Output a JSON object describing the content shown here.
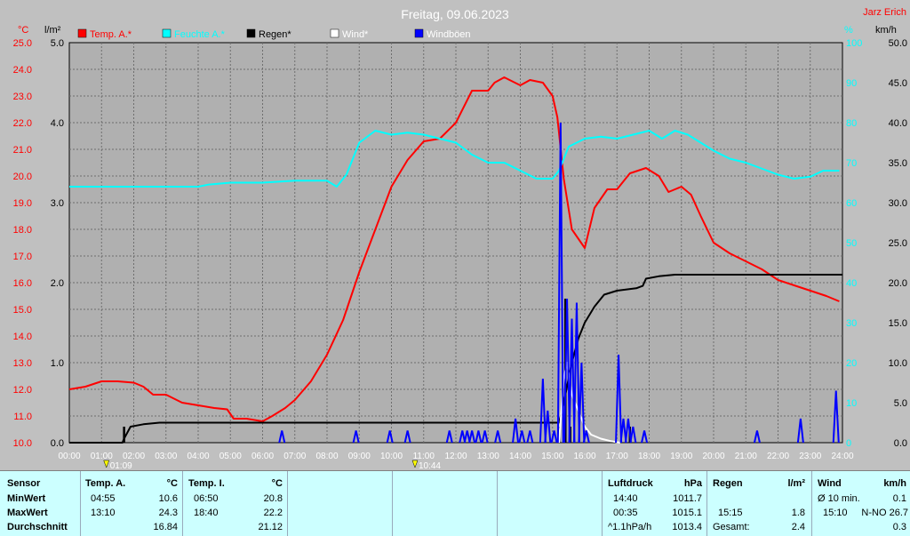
{
  "header": {
    "title": "Freitag, 09.06.2023",
    "author": "Jarz Erich"
  },
  "axis_units": {
    "temp": "°C",
    "rain": "l/m²",
    "humidity": "%",
    "wind": "km/h"
  },
  "legend": [
    {
      "label": "Temp. A.*",
      "color": "#ff0000"
    },
    {
      "label": "Feuchte A.*",
      "color": "#00ffff"
    },
    {
      "label": "Regen*",
      "color": "#000000"
    },
    {
      "label": "Wind*",
      "color": "#ffffff"
    },
    {
      "label": "Windböen",
      "color": "#0000ff"
    }
  ],
  "chart_data": {
    "type": "line",
    "title": "Freitag, 09.06.2023",
    "x_ticks": [
      "00:00",
      "01:00",
      "02:00",
      "03:00",
      "04:00",
      "05:00",
      "06:00",
      "07:00",
      "08:00",
      "09:00",
      "10:00",
      "11:00",
      "12:00",
      "13:00",
      "14:00",
      "15:00",
      "16:00",
      "17:00",
      "18:00",
      "19:00",
      "20:00",
      "21:00",
      "22:00",
      "23:00",
      "24:00"
    ],
    "temp_ticks": [
      "10.0",
      "11.0",
      "12.0",
      "13.0",
      "14.0",
      "15.0",
      "16.0",
      "17.0",
      "18.0",
      "19.0",
      "20.0",
      "21.0",
      "22.0",
      "23.0",
      "24.0",
      "25.0"
    ],
    "rain_ticks": [
      "0.0",
      "1.0",
      "2.0",
      "3.0",
      "4.0",
      "5.0"
    ],
    "humidity_ticks": [
      "0",
      "10",
      "20",
      "30",
      "40",
      "50",
      "60",
      "70",
      "80",
      "90",
      "100"
    ],
    "wind_ticks": [
      "0.0",
      "5.0",
      "10.0",
      "15.0",
      "20.0",
      "25.0",
      "30.0",
      "35.0",
      "40.0",
      "45.0",
      "50.0"
    ],
    "ylim_temp": [
      10,
      25
    ],
    "ylim_rain": [
      0,
      5
    ],
    "ylim_humidity": [
      0,
      100
    ],
    "ylim_wind": [
      0,
      50
    ],
    "xlim_hours": [
      0,
      24
    ],
    "grid": true,
    "events": [
      {
        "label": "01:09",
        "hour": 1.15
      },
      {
        "label": "10:44",
        "hour": 10.73
      }
    ],
    "series": [
      {
        "name": "Temp. A.*",
        "axis": "temp",
        "color": "#ff0000",
        "points": [
          [
            0,
            12.0
          ],
          [
            0.5,
            12.1
          ],
          [
            1,
            12.3
          ],
          [
            1.5,
            12.3
          ],
          [
            2,
            12.25
          ],
          [
            2.3,
            12.1
          ],
          [
            2.6,
            11.8
          ],
          [
            3,
            11.8
          ],
          [
            3.5,
            11.5
          ],
          [
            4,
            11.4
          ],
          [
            4.5,
            11.3
          ],
          [
            4.9,
            11.25
          ],
          [
            5.1,
            10.9
          ],
          [
            5.5,
            10.9
          ],
          [
            6,
            10.8
          ],
          [
            6.3,
            11.0
          ],
          [
            6.7,
            11.3
          ],
          [
            7,
            11.6
          ],
          [
            7.5,
            12.3
          ],
          [
            8,
            13.3
          ],
          [
            8.5,
            14.6
          ],
          [
            9,
            16.4
          ],
          [
            9.5,
            18.0
          ],
          [
            10,
            19.6
          ],
          [
            10.5,
            20.6
          ],
          [
            11,
            21.3
          ],
          [
            11.5,
            21.4
          ],
          [
            12,
            22.0
          ],
          [
            12.5,
            23.2
          ],
          [
            13,
            23.2
          ],
          [
            13.2,
            23.5
          ],
          [
            13.5,
            23.7
          ],
          [
            14,
            23.4
          ],
          [
            14.3,
            23.6
          ],
          [
            14.7,
            23.5
          ],
          [
            15,
            23.0
          ],
          [
            15.15,
            22.2
          ],
          [
            15.35,
            19.9
          ],
          [
            15.6,
            18.0
          ],
          [
            16,
            17.3
          ],
          [
            16.3,
            18.8
          ],
          [
            16.7,
            19.5
          ],
          [
            17,
            19.5
          ],
          [
            17.4,
            20.1
          ],
          [
            17.9,
            20.3
          ],
          [
            18.3,
            20.0
          ],
          [
            18.6,
            19.4
          ],
          [
            19,
            19.6
          ],
          [
            19.3,
            19.3
          ],
          [
            19.6,
            18.5
          ],
          [
            20,
            17.5
          ],
          [
            20.5,
            17.1
          ],
          [
            21,
            16.8
          ],
          [
            21.5,
            16.5
          ],
          [
            22,
            16.1
          ],
          [
            22.5,
            15.9
          ],
          [
            23,
            15.7
          ],
          [
            23.5,
            15.5
          ],
          [
            23.9,
            15.3
          ]
        ]
      },
      {
        "name": "Feuchte A.*",
        "axis": "humidity",
        "color": "#00ffff",
        "points": [
          [
            0,
            64
          ],
          [
            1,
            64
          ],
          [
            2,
            64
          ],
          [
            3,
            64
          ],
          [
            4,
            64
          ],
          [
            4.3,
            64.5
          ],
          [
            5,
            65
          ],
          [
            6,
            65
          ],
          [
            7,
            65.5
          ],
          [
            8,
            65.5
          ],
          [
            8.3,
            64
          ],
          [
            8.6,
            67
          ],
          [
            9,
            75
          ],
          [
            9.5,
            78
          ],
          [
            10,
            77
          ],
          [
            10.5,
            77.5
          ],
          [
            11,
            77
          ],
          [
            11.5,
            76
          ],
          [
            12,
            75
          ],
          [
            12.5,
            72
          ],
          [
            13,
            70
          ],
          [
            13.5,
            70
          ],
          [
            14,
            68
          ],
          [
            14.5,
            66
          ],
          [
            15,
            66
          ],
          [
            15.2,
            68
          ],
          [
            15.5,
            74
          ],
          [
            16,
            76
          ],
          [
            16.5,
            76.5
          ],
          [
            17,
            76
          ],
          [
            17.5,
            77
          ],
          [
            18,
            78
          ],
          [
            18.4,
            76
          ],
          [
            18.8,
            78
          ],
          [
            19.2,
            77
          ],
          [
            19.6,
            75
          ],
          [
            20,
            73
          ],
          [
            20.5,
            71
          ],
          [
            21,
            70
          ],
          [
            22,
            67
          ],
          [
            22.5,
            66
          ],
          [
            23,
            66.5
          ],
          [
            23.4,
            68
          ],
          [
            23.9,
            68
          ]
        ]
      },
      {
        "name": "Regen*",
        "axis": "rain",
        "color": "#000000",
        "points": [
          [
            0,
            0
          ],
          [
            1.65,
            0
          ],
          [
            1.7,
            0.05
          ],
          [
            1.9,
            0.2
          ],
          [
            2.3,
            0.23
          ],
          [
            2.8,
            0.25
          ],
          [
            6,
            0.25
          ],
          [
            10,
            0.25
          ],
          [
            14,
            0.25
          ],
          [
            15.2,
            0.25
          ],
          [
            15.3,
            0.4
          ],
          [
            15.6,
            1.0
          ],
          [
            15.8,
            1.3
          ],
          [
            16,
            1.5
          ],
          [
            16.3,
            1.7
          ],
          [
            16.6,
            1.85
          ],
          [
            17,
            1.9
          ],
          [
            17.6,
            1.93
          ],
          [
            17.8,
            1.96
          ],
          [
            17.9,
            2.05
          ],
          [
            18.3,
            2.08
          ],
          [
            18.8,
            2.1
          ],
          [
            20,
            2.1
          ],
          [
            22,
            2.1
          ],
          [
            24,
            2.1
          ]
        ]
      },
      {
        "name": "Regen spikes",
        "axis": "rain",
        "color": "#000000",
        "bars": [
          [
            1.7,
            0.2
          ],
          [
            15.2,
            0.2
          ],
          [
            15.4,
            1.8
          ],
          [
            15.55,
            0.2
          ],
          [
            17.4,
            0.2
          ]
        ]
      },
      {
        "name": "Wind*",
        "axis": "wind",
        "color": "#ffffff",
        "points": [
          [
            15.2,
            0
          ],
          [
            15.35,
            8
          ],
          [
            15.45,
            10
          ],
          [
            15.6,
            6
          ],
          [
            15.7,
            5
          ],
          [
            15.8,
            4
          ],
          [
            16,
            2
          ],
          [
            16.2,
            1
          ],
          [
            16.5,
            0.5
          ],
          [
            16.8,
            0.2
          ],
          [
            17.1,
            0
          ]
        ]
      },
      {
        "name": "Windböen",
        "axis": "wind",
        "color": "#0000ff",
        "spikes": [
          [
            6.6,
            1.5
          ],
          [
            8.9,
            1.5
          ],
          [
            9.95,
            1.5
          ],
          [
            10.5,
            1.5
          ],
          [
            11.8,
            1.5
          ],
          [
            12.2,
            1.5
          ],
          [
            12.35,
            1.5
          ],
          [
            12.5,
            1.5
          ],
          [
            12.7,
            1.5
          ],
          [
            12.9,
            1.5
          ],
          [
            13.3,
            1.5
          ],
          [
            13.85,
            3.0
          ],
          [
            14.05,
            1.5
          ],
          [
            14.3,
            1.5
          ],
          [
            14.7,
            8.0
          ],
          [
            14.85,
            4.0
          ],
          [
            15.05,
            1.5
          ],
          [
            15.25,
            40.0
          ],
          [
            15.45,
            18.0
          ],
          [
            15.6,
            15.5
          ],
          [
            15.75,
            17.5
          ],
          [
            15.9,
            10.0
          ],
          [
            16.05,
            1.5
          ],
          [
            17.05,
            11.0
          ],
          [
            17.2,
            3.0
          ],
          [
            17.35,
            3.0
          ],
          [
            17.5,
            2.0
          ],
          [
            17.85,
            1.5
          ],
          [
            21.35,
            1.5
          ],
          [
            22.7,
            3.0
          ],
          [
            23.8,
            6.5
          ]
        ]
      }
    ]
  },
  "stats": {
    "sensor": {
      "header": "Sensor",
      "rows": [
        "MinWert",
        "MaxWert",
        "Durchschnitt"
      ]
    },
    "temp_a": {
      "header": "Temp. A.",
      "unit": "°C",
      "min_time": "04:55",
      "min_val": "10.6",
      "max_time": "13:10",
      "max_val": "24.3",
      "avg": "16.84"
    },
    "temp_i": {
      "header": "Temp. I.",
      "unit": "°C",
      "min_time": "06:50",
      "min_val": "20.8",
      "max_time": "18:40",
      "max_val": "22.2",
      "avg": "21.12"
    },
    "pressure": {
      "header": "Luftdruck",
      "unit": "hPa",
      "min_time": "14:40",
      "min_val": "1011.7",
      "max_time": "00:35",
      "max_val": "1015.1",
      "trend": "^1.1hPa/h",
      "trend_val": "1013.4"
    },
    "rain": {
      "header": "Regen",
      "unit": "l/m²",
      "max_time": "15:15",
      "max_val": "1.8",
      "total_label": "Gesamt:",
      "total_val": "2.4"
    },
    "wind": {
      "header": "Wind",
      "unit": "km/h",
      "avg_label": "Ø 10 min.",
      "avg_val": "0.1",
      "max_time": "15:10",
      "max_val": "N-NO 26.7",
      "avg2": "0.3"
    }
  }
}
